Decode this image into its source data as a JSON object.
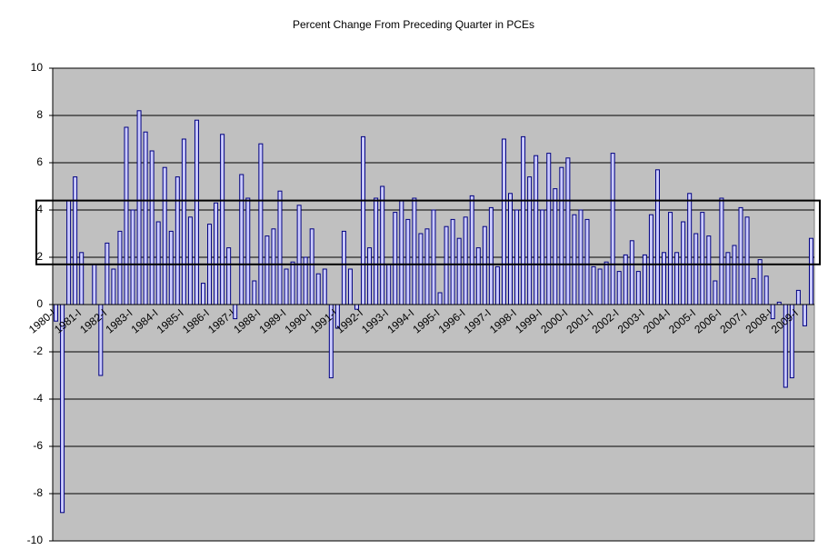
{
  "chart_data": {
    "type": "bar",
    "title": "Percent Change From Preceding Quarter in PCEs",
    "categories": [
      "1980-I",
      null,
      null,
      null,
      "1981-I",
      null,
      null,
      null,
      "1982-I",
      null,
      null,
      null,
      "1983-I",
      null,
      null,
      null,
      "1984-I",
      null,
      null,
      null,
      "1985-I",
      null,
      null,
      null,
      "1986-I",
      null,
      null,
      null,
      "1987-I",
      null,
      null,
      null,
      "1988-I",
      null,
      null,
      null,
      "1989-I",
      null,
      null,
      null,
      "1990-I",
      null,
      null,
      null,
      "1991-I",
      null,
      null,
      null,
      "1992-I",
      null,
      null,
      null,
      "1993-I",
      null,
      null,
      null,
      "1994-I",
      null,
      null,
      null,
      "1995-I",
      null,
      null,
      null,
      "1996-I",
      null,
      null,
      null,
      "1997-I",
      null,
      null,
      null,
      "1998-I",
      null,
      null,
      null,
      "1999-I",
      null,
      null,
      null,
      "2000-I",
      null,
      null,
      null,
      "2001-I",
      null,
      null,
      null,
      "2002-I",
      null,
      null,
      null,
      "2003-I",
      null,
      null,
      null,
      "2004-I",
      null,
      null,
      null,
      "2005-I",
      null,
      null,
      null,
      "2006-I",
      null,
      null,
      null,
      "2007-I",
      null,
      null,
      null,
      "2008-I",
      null,
      null,
      null,
      "2009-I",
      null,
      null
    ],
    "values": [
      -0.7,
      -8.8,
      4.4,
      5.4,
      2.2,
      0,
      1.7,
      -3.0,
      2.6,
      1.5,
      3.1,
      7.5,
      4.0,
      8.2,
      7.3,
      6.5,
      3.5,
      5.8,
      3.1,
      5.4,
      7.0,
      3.7,
      7.8,
      0.9,
      3.4,
      4.3,
      7.2,
      2.4,
      -0.6,
      5.5,
      4.5,
      1.0,
      6.8,
      2.9,
      3.2,
      4.8,
      1.5,
      1.8,
      4.2,
      2.0,
      3.2,
      1.3,
      1.5,
      -3.1,
      -1.0,
      3.1,
      1.5,
      -0.2,
      7.1,
      2.4,
      4.5,
      5.0,
      1.7,
      3.9,
      4.4,
      3.6,
      4.5,
      3.0,
      3.2,
      4.0,
      0.5,
      3.3,
      3.6,
      2.8,
      3.7,
      4.6,
      2.4,
      3.3,
      4.1,
      1.6,
      7.0,
      4.7,
      4.0,
      7.1,
      5.4,
      6.3,
      4.0,
      6.4,
      4.9,
      5.8,
      6.2,
      3.8,
      4.0,
      3.6,
      1.6,
      1.5,
      1.8,
      6.4,
      1.4,
      2.1,
      2.7,
      1.4,
      2.1,
      3.8,
      5.7,
      2.2,
      3.9,
      2.2,
      3.5,
      4.7,
      3.0,
      3.9,
      2.9,
      1.0,
      4.5,
      2.2,
      2.5,
      4.1,
      3.7,
      1.1,
      1.9,
      1.2,
      -0.6,
      0.1,
      -3.5,
      -3.1,
      0.6,
      -0.9,
      2.8
    ],
    "color": "#ccccff",
    "edgecolor": "#000080",
    "ylim": [
      -10,
      10
    ],
    "yticks": [
      -10,
      -8,
      -6,
      -4,
      -2,
      0,
      2,
      4,
      6,
      8,
      10
    ],
    "grid": true
  }
}
